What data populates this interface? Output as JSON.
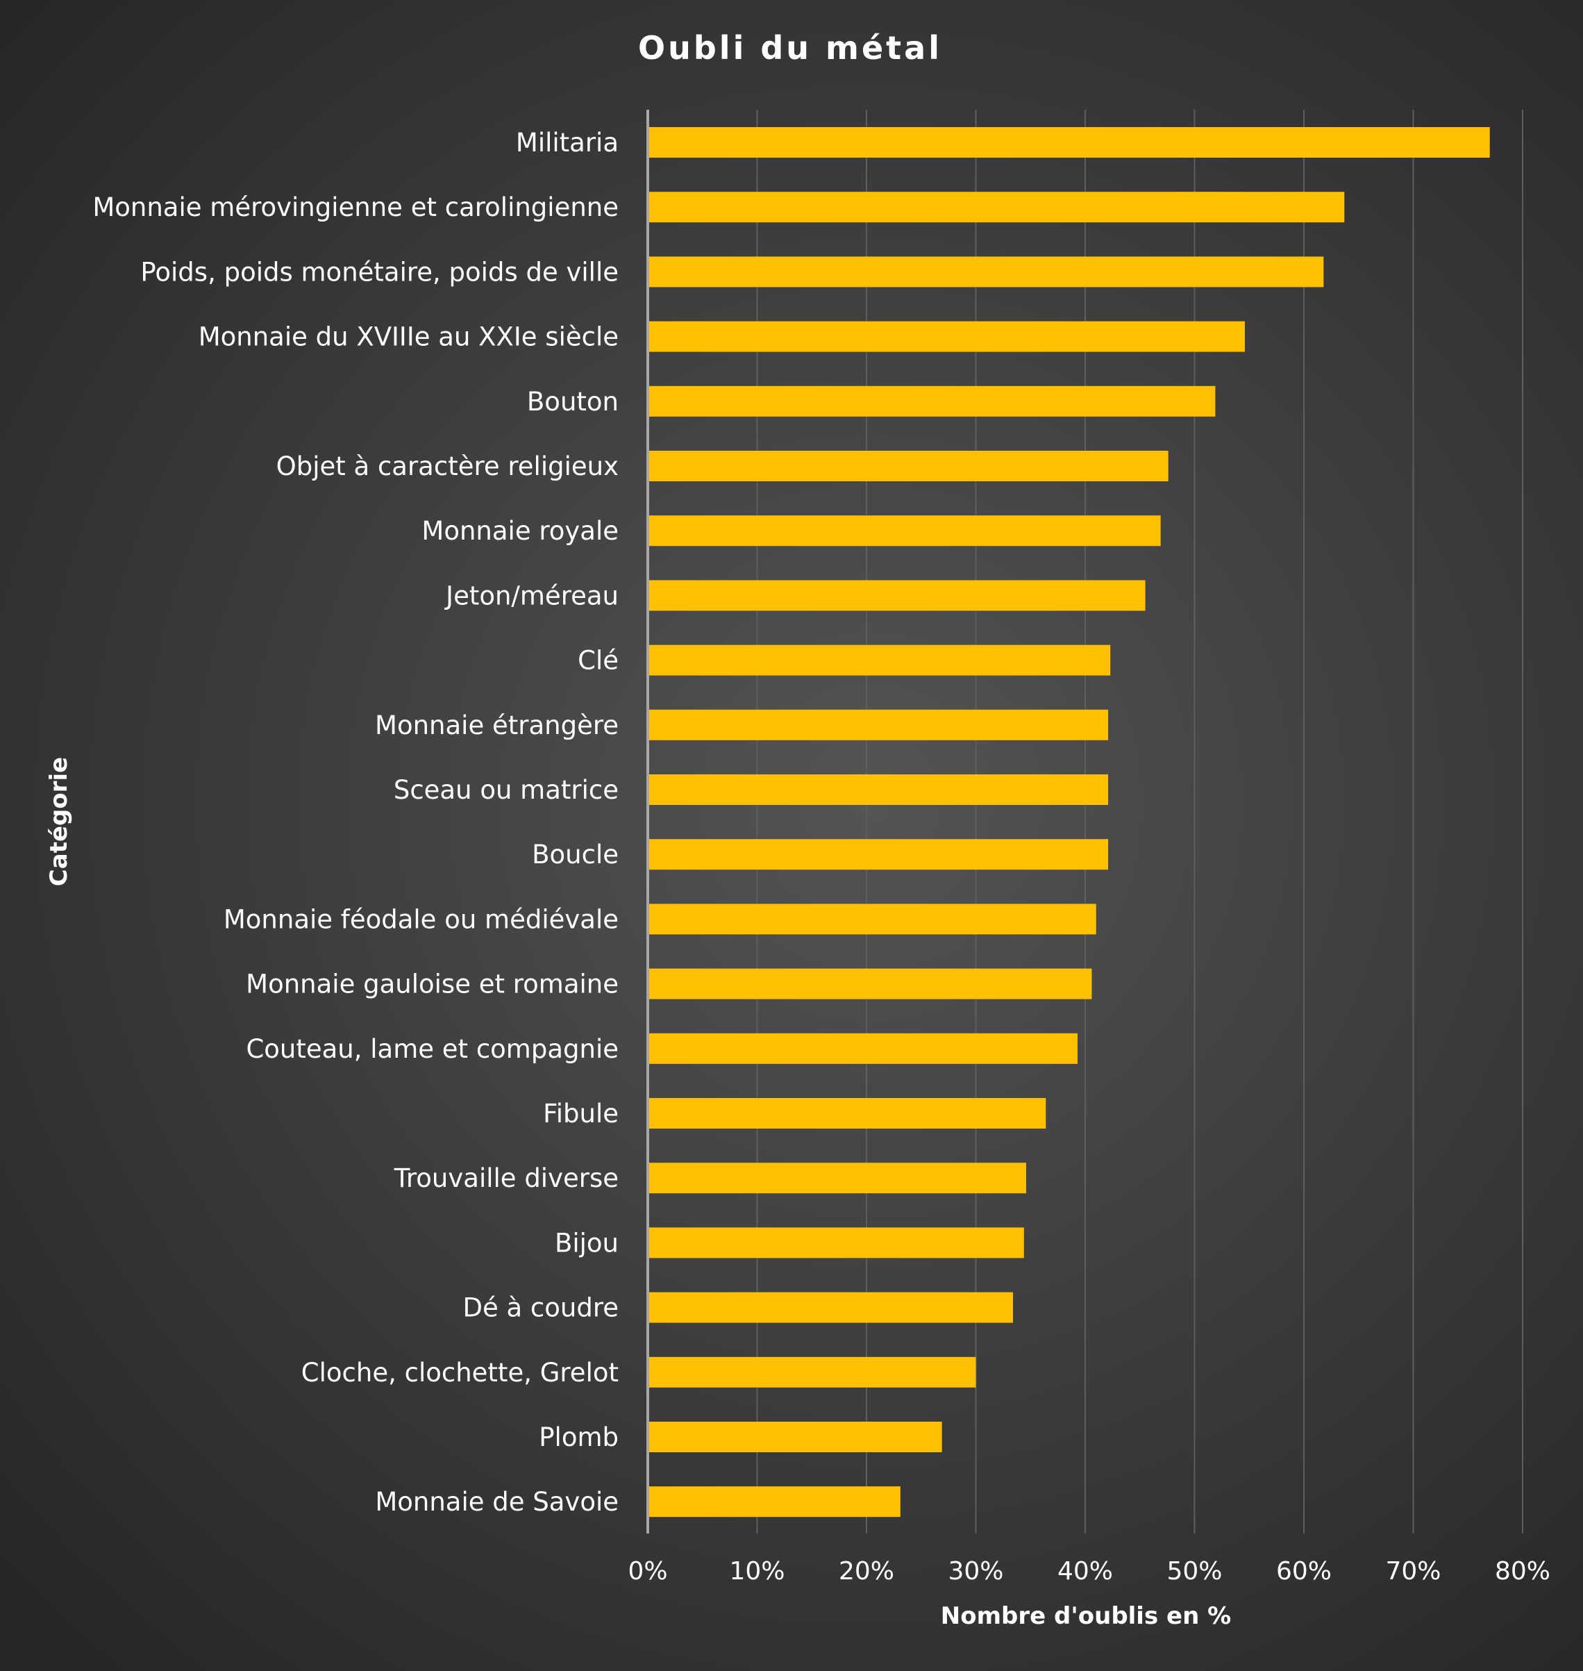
{
  "chart_data": {
    "type": "bar",
    "orientation": "horizontal",
    "title": "Oubli du métal",
    "xlabel": "Nombre d'oublis en %",
    "ylabel": "Catégorie",
    "xlim": [
      0,
      80
    ],
    "xticks": [
      "0%",
      "10%",
      "20%",
      "30%",
      "40%",
      "50%",
      "60%",
      "70%",
      "80%"
    ],
    "grid": true,
    "bar_color": "#ffc000",
    "categories": [
      "Militaria",
      "Monnaie mérovingienne et carolingienne",
      "Poids, poids monétaire, poids de ville",
      "Monnaie du XVIIIe au XXIe siècle",
      "Bouton",
      "Objet à caractère religieux",
      "Monnaie royale",
      "Jeton/méreau",
      "Clé",
      "Monnaie étrangère",
      "Sceau ou matrice",
      "Boucle",
      "Monnaie féodale ou médiévale",
      "Monnaie gauloise et romaine",
      "Couteau, lame et compagnie",
      "Fibule",
      "Trouvaille diverse",
      "Bijou",
      "Dé à coudre",
      "Cloche, clochette, Grelot",
      "Plomb",
      "Monnaie de Savoie"
    ],
    "values": [
      77.0,
      63.7,
      61.8,
      54.6,
      51.9,
      47.6,
      46.9,
      45.5,
      42.3,
      42.1,
      42.1,
      42.1,
      41.0,
      40.6,
      39.3,
      36.4,
      34.6,
      34.4,
      33.4,
      30.0,
      26.9,
      23.1
    ]
  }
}
